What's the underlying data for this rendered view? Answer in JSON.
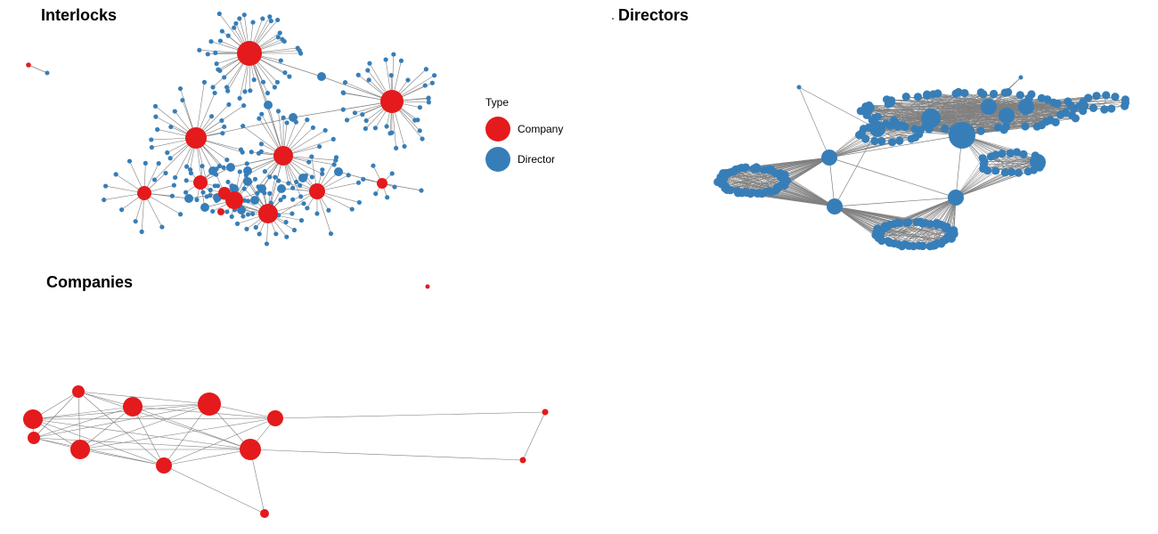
{
  "titles": {
    "interlocks": "Interlocks",
    "directors": "Directors",
    "companies": "Companies"
  },
  "legend": {
    "title": "Type",
    "items": [
      {
        "label": "Company",
        "color": "#e41a1c"
      },
      {
        "label": "Director",
        "color": "#377eb8"
      }
    ]
  },
  "colors": {
    "company": "#e41a1c",
    "director": "#377eb8",
    "edge": "#808080"
  }
}
